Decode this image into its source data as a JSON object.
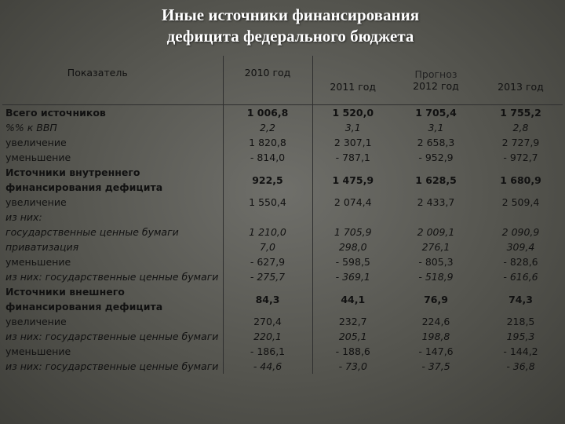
{
  "title": {
    "line1": "Иные источники финансирования",
    "line2": "дефицита федерального бюджета"
  },
  "header": {
    "indicator": "Показатель",
    "y2010": "2010 год",
    "y2011": "2011 год",
    "forecast": "Прогноз",
    "y2012": "2012 год",
    "y2013": "2013 год"
  },
  "rows": [
    {
      "label": "Всего источников",
      "v": [
        "1 006,8",
        "1 520,0",
        "1 705,4",
        "1 755,2"
      ],
      "style": "bold"
    },
    {
      "label": " %% к ВВП",
      "v": [
        "2,2",
        "3,1",
        "3,1",
        "2,8"
      ],
      "style": "ital"
    },
    {
      "label": "увеличение",
      "v": [
        "1 820,8",
        "2 307,1",
        "2 658,3",
        "2 727,9"
      ],
      "style": ""
    },
    {
      "label": "уменьшение",
      "v": [
        "- 814,0",
        "- 787,1",
        "- 952,9",
        "- 972,7"
      ],
      "style": ""
    },
    {
      "label": "Источники внутреннего финансирования дефицита",
      "v": [
        "922,5",
        "1 475,9",
        "1 628,5",
        "1 680,9"
      ],
      "style": "bold"
    },
    {
      "label": "увеличение",
      "v": [
        "1 550,4",
        "2 074,4",
        "2 433,7",
        "2 509,4"
      ],
      "style": ""
    },
    {
      "label": "из них:",
      "v": [
        "",
        "",
        "",
        ""
      ],
      "style": "ital"
    },
    {
      "label": "государственные ценные бумаги",
      "v": [
        "1 210,0",
        "1 705,9",
        "2 009,1",
        "2 090,9"
      ],
      "style": "ital"
    },
    {
      "label": "приватизация",
      "v": [
        "7,0",
        "298,0",
        "276,1",
        "309,4"
      ],
      "style": "ital"
    },
    {
      "label": "уменьшение",
      "v": [
        "- 627,9",
        "- 598,5",
        "- 805,3",
        "- 828,6"
      ],
      "style": ""
    },
    {
      "label": "из них: государственные ценные бумаги",
      "v": [
        "- 275,7",
        "- 369,1",
        "- 518,9",
        "- 616,6"
      ],
      "style": "ital"
    },
    {
      "label": "Источники внешнего финансирования дефицита",
      "v": [
        "84,3",
        "44,1",
        "76,9",
        "74,3"
      ],
      "style": "bold"
    },
    {
      "label": "увеличение",
      "v": [
        "270,4",
        "232,7",
        "224,6",
        "218,5"
      ],
      "style": ""
    },
    {
      "label": "из них: государственные ценные бумаги",
      "v": [
        "220,1",
        "205,1",
        "198,8",
        "195,3"
      ],
      "style": "ital"
    },
    {
      "label": "уменьшение",
      "v": [
        "- 186,1",
        "- 188,6",
        "- 147,6",
        "- 144,2"
      ],
      "style": ""
    },
    {
      "label": "из них: государственные ценные бумаги",
      "v": [
        "- 44,6",
        "- 73,0",
        "- 37,5",
        "- 36,8"
      ],
      "style": "ital"
    }
  ]
}
